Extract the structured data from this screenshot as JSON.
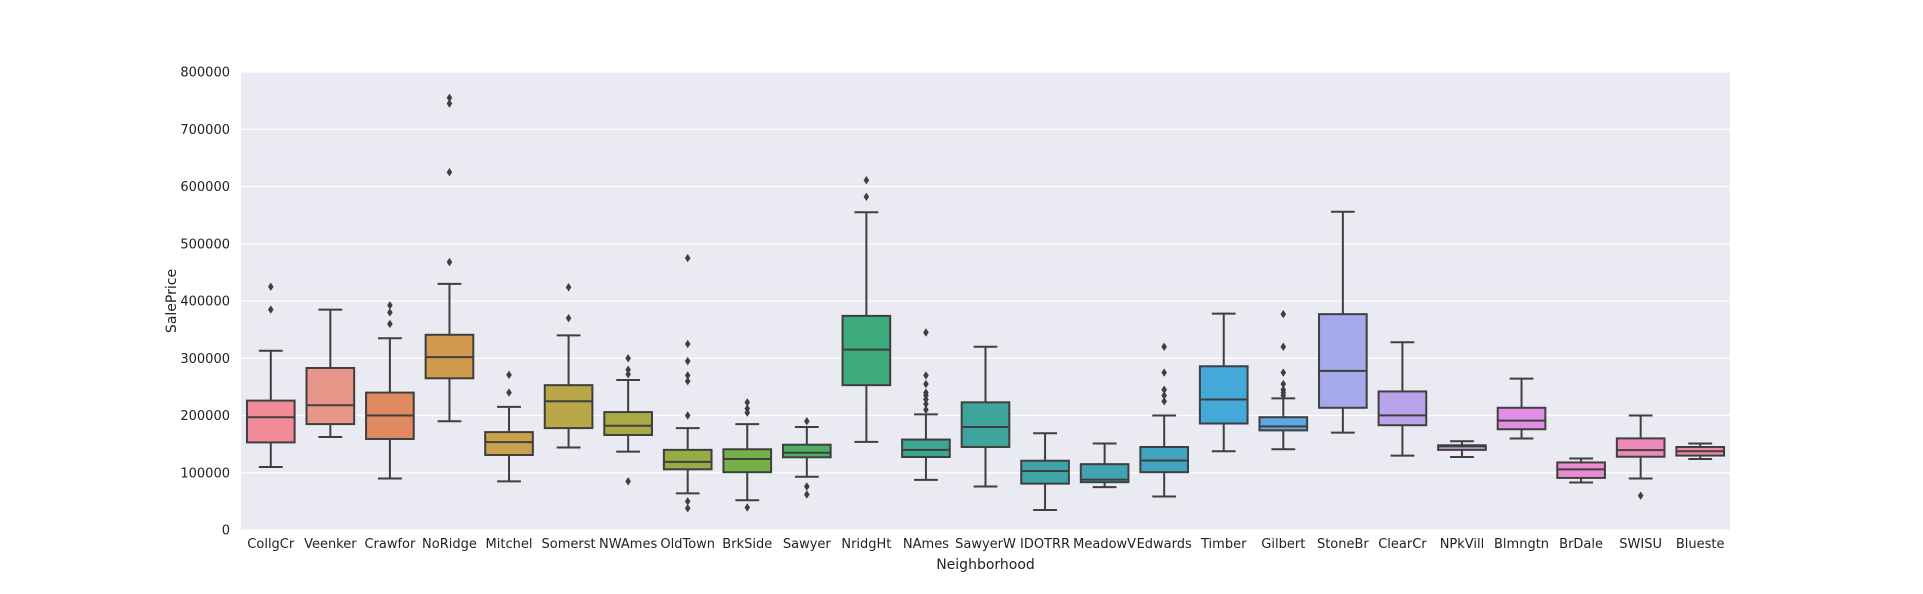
{
  "chart_data": {
    "type": "boxplot",
    "xlabel": "Neighborhood",
    "ylabel": "SalePrice",
    "ylim": [
      0,
      800000
    ],
    "yticks": [
      0,
      100000,
      200000,
      300000,
      400000,
      500000,
      600000,
      700000,
      800000
    ],
    "ytick_labels": [
      "0",
      "100000",
      "200000",
      "300000",
      "400000",
      "500000",
      "600000",
      "700000",
      "800000"
    ],
    "grid": true,
    "background_color": "#eaeaf2",
    "categories": [
      {
        "name": "CollgCr",
        "color": "#f08b97",
        "whislo": 110000,
        "q1": 153000,
        "med": 197000,
        "q3": 226000,
        "whishi": 313000,
        "fliers": [
          385000,
          425000
        ]
      },
      {
        "name": "Veenker",
        "color": "#e9968a",
        "whislo": 162500,
        "q1": 185000,
        "med": 218000,
        "q3": 283000,
        "whishi": 385000,
        "fliers": []
      },
      {
        "name": "Crawfor",
        "color": "#e08a5f",
        "whislo": 90000,
        "q1": 159000,
        "med": 200000,
        "q3": 240000,
        "whishi": 335000,
        "fliers": [
          360000,
          380000,
          392500
        ]
      },
      {
        "name": "NoRidge",
        "color": "#d19a4c",
        "whislo": 190000,
        "q1": 265000,
        "med": 302000,
        "q3": 341000,
        "whishi": 430000,
        "fliers": [
          468000,
          625000,
          745000,
          755000
        ]
      },
      {
        "name": "Mitchel",
        "color": "#c9a34c",
        "whislo": 85000,
        "q1": 131000,
        "med": 153500,
        "q3": 171000,
        "whishi": 215000,
        "fliers": [
          240000,
          271000
        ]
      },
      {
        "name": "Somerst",
        "color": "#b9a748",
        "whislo": 144000,
        "q1": 178000,
        "med": 225000,
        "q3": 253000,
        "whishi": 340000,
        "fliers": [
          370000,
          424000
        ]
      },
      {
        "name": "NWAmes",
        "color": "#a9aa45",
        "whislo": 137000,
        "q1": 166000,
        "med": 182000,
        "q3": 206000,
        "whishi": 262000,
        "fliers": [
          85000,
          272000,
          280000,
          300000
        ]
      },
      {
        "name": "OldTown",
        "color": "#97ac44",
        "whislo": 64000,
        "q1": 106000,
        "med": 119000,
        "q3": 140000,
        "whishi": 178000,
        "fliers": [
          37900,
          50000,
          200000,
          260000,
          270000,
          295000,
          325000,
          475000
        ]
      },
      {
        "name": "BrkSide",
        "color": "#76b046",
        "whislo": 52000,
        "q1": 101000,
        "med": 124000,
        "q3": 141000,
        "whishi": 185000,
        "fliers": [
          39300,
          205000,
          212000,
          223000
        ]
      },
      {
        "name": "Sawyer",
        "color": "#4eb060",
        "whislo": 93000,
        "q1": 127000,
        "med": 135000,
        "q3": 149000,
        "whishi": 180000,
        "fliers": [
          62000,
          76000,
          190000
        ]
      },
      {
        "name": "NridgHt",
        "color": "#3daa7b",
        "whislo": 154000,
        "q1": 253000,
        "med": 315000,
        "q3": 374000,
        "whishi": 555000,
        "fliers": [
          582000,
          611000
        ]
      },
      {
        "name": "NAmes",
        "color": "#3ca791",
        "whislo": 87500,
        "q1": 127500,
        "med": 140000,
        "q3": 158000,
        "whishi": 202000,
        "fliers": [
          210000,
          220000,
          228000,
          235000,
          240000,
          255000,
          270000,
          345000
        ]
      },
      {
        "name": "SawyerW",
        "color": "#3ea59c",
        "whislo": 76000,
        "q1": 145000,
        "med": 180000,
        "q3": 223000,
        "whishi": 320000,
        "fliers": []
      },
      {
        "name": "IDOTRR",
        "color": "#3ea4a7",
        "whislo": 34900,
        "q1": 81000,
        "med": 103000,
        "q3": 121000,
        "whishi": 169000,
        "fliers": []
      },
      {
        "name": "MeadowV",
        "color": "#41a3b2",
        "whislo": 75000,
        "q1": 83500,
        "med": 88000,
        "q3": 115000,
        "whishi": 151000,
        "fliers": []
      },
      {
        "name": "Edwards",
        "color": "#41a5c2",
        "whislo": 58500,
        "q1": 101000,
        "med": 121500,
        "q3": 145000,
        "whishi": 200000,
        "fliers": [
          225000,
          235000,
          245000,
          275000,
          320000
        ]
      },
      {
        "name": "Timber",
        "color": "#44a9d8",
        "whislo": 137500,
        "q1": 186000,
        "med": 228000,
        "q3": 286000,
        "whishi": 378000,
        "fliers": []
      },
      {
        "name": "Gilbert",
        "color": "#60a6e0",
        "whislo": 141000,
        "q1": 174000,
        "med": 181000,
        "q3": 197000,
        "whishi": 230000,
        "fliers": [
          235000,
          240000,
          245000,
          255000,
          275000,
          320000,
          377000
        ]
      },
      {
        "name": "StoneBr",
        "color": "#a3a9ea",
        "whislo": 170000,
        "q1": 213500,
        "med": 278000,
        "q3": 377000,
        "whishi": 556000,
        "fliers": []
      },
      {
        "name": "ClearCr",
        "color": "#b9a4ec",
        "whislo": 130000,
        "q1": 183000,
        "med": 200250,
        "q3": 242000,
        "whishi": 328000,
        "fliers": []
      },
      {
        "name": "NPkVill",
        "color": "#cda0ea",
        "whislo": 127500,
        "q1": 140000,
        "med": 146000,
        "q3": 148000,
        "whishi": 155000,
        "fliers": []
      },
      {
        "name": "Blmngtn",
        "color": "#e08ee6",
        "whislo": 159900,
        "q1": 176000,
        "med": 191000,
        "q3": 213500,
        "whishi": 264500,
        "fliers": []
      },
      {
        "name": "BrDale",
        "color": "#ea8cd2",
        "whislo": 83000,
        "q1": 91000,
        "med": 106000,
        "q3": 118000,
        "whishi": 125000,
        "fliers": []
      },
      {
        "name": "SWISU",
        "color": "#ee8ab9",
        "whislo": 90000,
        "q1": 128000,
        "med": 139500,
        "q3": 160000,
        "whishi": 200000,
        "fliers": [
          60000
        ]
      },
      {
        "name": "Blueste",
        "color": "#ef8ba8",
        "whislo": 124000,
        "q1": 130000,
        "med": 137500,
        "q3": 145000,
        "whishi": 151000,
        "fliers": []
      }
    ]
  }
}
